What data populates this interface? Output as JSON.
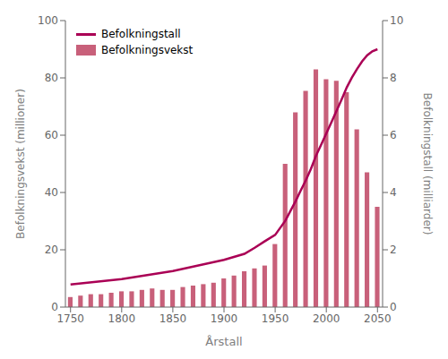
{
  "chart_data": {
    "type": "bar",
    "xlabel": "Årstall",
    "ylabel": "Befolkningsvekst (millioner)",
    "y2label": "Befolkningstall (milliarder)",
    "xlim": [
      1745,
      2055
    ],
    "xticks": [
      1750,
      1800,
      1850,
      1900,
      1950,
      2000,
      2050
    ],
    "ylim": [
      0,
      100
    ],
    "yticks": [
      0,
      20,
      40,
      60,
      80,
      100
    ],
    "y2lim": [
      0,
      10
    ],
    "y2ticks": [
      0,
      2,
      4,
      6,
      8,
      10
    ],
    "grid": false,
    "legend": "upper left",
    "series": [
      {
        "name": "Befolkningstall",
        "type": "line",
        "axis": "y2",
        "color": "#aa0055",
        "x": [
          1750,
          1800,
          1850,
          1900,
          1920,
          1930,
          1940,
          1950,
          1960,
          1970,
          1975,
          1980,
          1985,
          1990,
          1995,
          2000,
          2005,
          2010,
          2015,
          2020,
          2025,
          2030,
          2035,
          2040,
          2045,
          2050
        ],
        "values": [
          0.79,
          0.98,
          1.26,
          1.65,
          1.86,
          2.07,
          2.3,
          2.52,
          3.02,
          3.7,
          4.07,
          4.43,
          4.83,
          5.29,
          5.67,
          6.06,
          6.45,
          6.85,
          7.25,
          7.67,
          8.01,
          8.31,
          8.58,
          8.79,
          8.93,
          9.0
        ]
      },
      {
        "name": "Befolkningsvekst",
        "type": "bar",
        "color": "#c8607a",
        "x": [
          1750,
          1760,
          1770,
          1780,
          1790,
          1800,
          1810,
          1820,
          1830,
          1840,
          1850,
          1860,
          1870,
          1880,
          1890,
          1900,
          1910,
          1920,
          1930,
          1940,
          1950,
          1960,
          1970,
          1980,
          1990,
          2000,
          2010,
          2020,
          2030,
          2040,
          2050
        ],
        "values": [
          3.5,
          4.0,
          4.5,
          4.5,
          5.0,
          5.5,
          5.5,
          6.0,
          6.5,
          6.0,
          6.0,
          7.0,
          7.5,
          8.0,
          8.5,
          10.0,
          11.0,
          12.5,
          13.5,
          14.5,
          22.0,
          50.0,
          68.0,
          75.5,
          83.0,
          79.5,
          79.0,
          75.0,
          62.0,
          47.0,
          35.0
        ]
      }
    ]
  }
}
